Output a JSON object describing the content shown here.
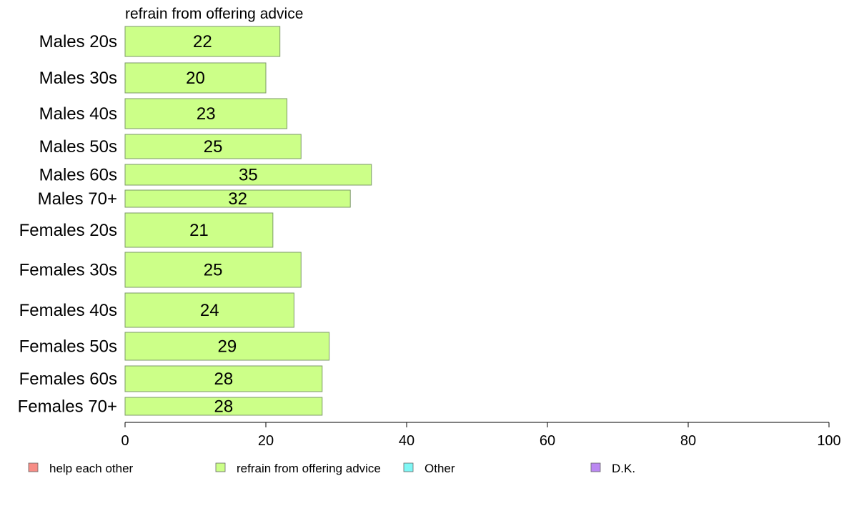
{
  "chart_data": {
    "type": "bar",
    "orientation": "horizontal",
    "title": "refrain from offering advice",
    "categories": [
      "Males 20s",
      "Males 30s",
      "Males 40s",
      "Males 50s",
      "Males 60s",
      "Males 70+",
      "Females 20s",
      "Females 30s",
      "Females 40s",
      "Females 50s",
      "Females 60s",
      "Females 70+"
    ],
    "series": [
      {
        "name": "refrain from offering advice",
        "values": [
          22,
          20,
          23,
          25,
          35,
          32,
          21,
          25,
          24,
          29,
          28,
          28
        ]
      }
    ],
    "xlim": [
      0,
      100
    ],
    "x_ticks": [
      "0",
      "20",
      "40",
      "60",
      "80",
      "100"
    ],
    "grid": false,
    "legend": {
      "placement": "bottom",
      "items": [
        {
          "label": "help each other",
          "color": "#f78d86"
        },
        {
          "label": "refrain from offering advice",
          "color": "#ccff88"
        },
        {
          "label": "Other",
          "color": "#7ff7f5"
        },
        {
          "label": "D.K.",
          "color": "#bb88f2"
        }
      ]
    },
    "bar_color": "#ccff88"
  }
}
